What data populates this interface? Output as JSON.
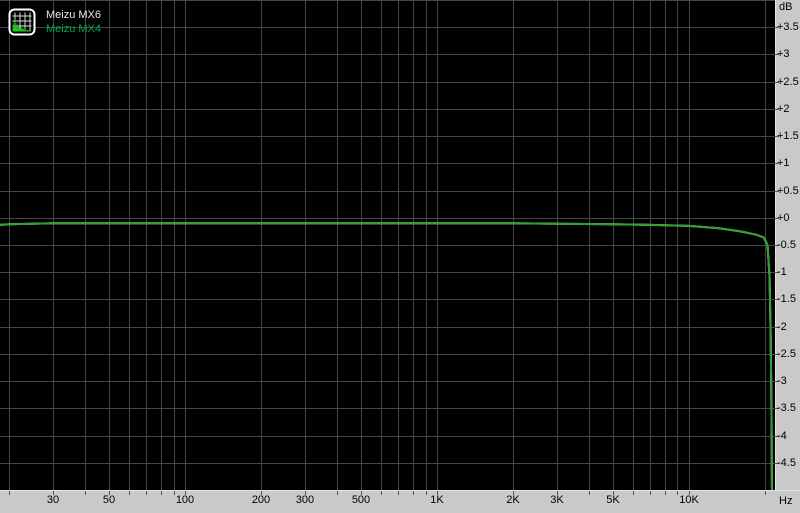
{
  "legend": {
    "items": [
      {
        "label": "Meizu MX6",
        "color": "#e8e8e8"
      },
      {
        "label": "Meizu MX4",
        "color": "#00a650"
      }
    ]
  },
  "axes": {
    "y": {
      "unit": "dB",
      "grid_step": 0.5,
      "ticks": [
        {
          "label": "+3.5",
          "value": 3.5
        },
        {
          "label": "+3",
          "value": 3.0
        },
        {
          "label": "+2.5",
          "value": 2.5
        },
        {
          "label": "+2",
          "value": 2.0
        },
        {
          "label": "+1.5",
          "value": 1.5
        },
        {
          "label": "+1",
          "value": 1.0
        },
        {
          "label": "+0.5",
          "value": 0.5
        },
        {
          "label": "+0",
          "value": 0.0
        },
        {
          "label": "-0.5",
          "value": -0.5
        },
        {
          "label": "-1",
          "value": -1.0
        },
        {
          "label": "-1.5",
          "value": -1.5
        },
        {
          "label": "-2",
          "value": -2.0
        },
        {
          "label": "-2.5",
          "value": -2.5
        },
        {
          "label": "-3",
          "value": -3.0
        },
        {
          "label": "-3.5",
          "value": -3.5
        },
        {
          "label": "-4",
          "value": -4.0
        },
        {
          "label": "-4.5",
          "value": -4.5
        }
      ]
    },
    "x": {
      "unit": "Hz",
      "scale": "log",
      "grid_frequencies": [
        20,
        30,
        40,
        50,
        60,
        70,
        80,
        90,
        100,
        200,
        300,
        400,
        500,
        600,
        700,
        800,
        900,
        1000,
        2000,
        3000,
        4000,
        5000,
        6000,
        7000,
        8000,
        9000,
        10000,
        20000
      ],
      "ticks": [
        {
          "label": "30",
          "value": 30
        },
        {
          "label": "50",
          "value": 50
        },
        {
          "label": "100",
          "value": 100
        },
        {
          "label": "200",
          "value": 200
        },
        {
          "label": "300",
          "value": 300
        },
        {
          "label": "500",
          "value": 500
        },
        {
          "label": "1K",
          "value": 1000
        },
        {
          "label": "2K",
          "value": 2000
        },
        {
          "label": "3K",
          "value": 3000
        },
        {
          "label": "5K",
          "value": 5000
        },
        {
          "label": "10K",
          "value": 10000
        }
      ]
    }
  },
  "chart_data": {
    "type": "line",
    "x_unit": "Hz",
    "y_unit": "dB",
    "x_scale": "log",
    "xlim": [
      18.4,
      21950
    ],
    "ylim": [
      -5,
      4
    ],
    "grid": true,
    "legend_position": "top-left",
    "series": [
      {
        "name": "Meizu MX6",
        "color": "#f0f0f0",
        "points": [
          [
            18.4,
            -0.13
          ],
          [
            20,
            -0.12
          ],
          [
            30,
            -0.1
          ],
          [
            50,
            -0.1
          ],
          [
            100,
            -0.1
          ],
          [
            200,
            -0.1
          ],
          [
            500,
            -0.1
          ],
          [
            1000,
            -0.1
          ],
          [
            2000,
            -0.1
          ],
          [
            3000,
            -0.11
          ],
          [
            5000,
            -0.12
          ],
          [
            7000,
            -0.13
          ],
          [
            10000,
            -0.15
          ],
          [
            13000,
            -0.19
          ],
          [
            16000,
            -0.25
          ],
          [
            18500,
            -0.31
          ],
          [
            19800,
            -0.36
          ],
          [
            20500,
            -0.5
          ],
          [
            20900,
            -1.1
          ],
          [
            21100,
            -2.2
          ],
          [
            21250,
            -3.6
          ],
          [
            21360,
            -5.2
          ]
        ]
      },
      {
        "name": "Meizu MX4",
        "color": "#2da32d",
        "points": [
          [
            18.4,
            -0.13
          ],
          [
            20,
            -0.12
          ],
          [
            30,
            -0.1
          ],
          [
            50,
            -0.1
          ],
          [
            100,
            -0.1
          ],
          [
            200,
            -0.1
          ],
          [
            500,
            -0.1
          ],
          [
            1000,
            -0.1
          ],
          [
            2000,
            -0.1
          ],
          [
            3000,
            -0.11
          ],
          [
            5000,
            -0.12
          ],
          [
            7000,
            -0.13
          ],
          [
            10000,
            -0.15
          ],
          [
            13000,
            -0.19
          ],
          [
            16000,
            -0.25
          ],
          [
            18500,
            -0.31
          ],
          [
            19800,
            -0.36
          ],
          [
            20500,
            -0.5
          ],
          [
            20900,
            -1.1
          ],
          [
            21100,
            -2.2
          ],
          [
            21250,
            -3.6
          ],
          [
            21360,
            -5.2
          ]
        ]
      }
    ]
  },
  "colors": {
    "plot_background": "#000000",
    "grid": "#464646",
    "axis_strip": "#c9c9c9",
    "axis_text": "#000000",
    "tick_mark": "#555555"
  }
}
